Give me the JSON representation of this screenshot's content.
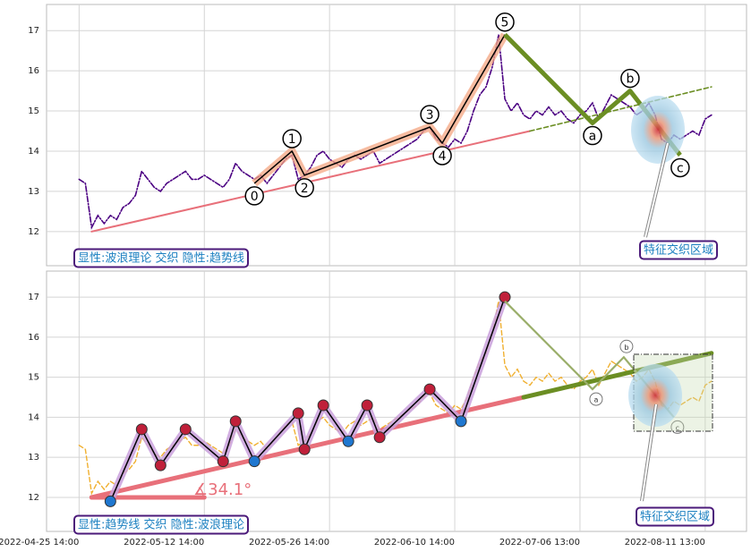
{
  "chart_data": [
    {
      "type": "line",
      "xlim": [
        -5.2,
        106.6
      ],
      "xticks": [
        0,
        20,
        40,
        60,
        80,
        100
      ],
      "ylim": [
        11.15,
        17.65
      ],
      "yticks": [
        12,
        13,
        14,
        15,
        16,
        17
      ],
      "grid": true,
      "series": [
        {
          "x": [
            0,
            1,
            2,
            3,
            4,
            5,
            6,
            7,
            8,
            9,
            10,
            11,
            12,
            13,
            14,
            15,
            16,
            17,
            18,
            19,
            20,
            21,
            22,
            23,
            24,
            25,
            26,
            27,
            28,
            29,
            30,
            31,
            32,
            33,
            34,
            35,
            36,
            37,
            38,
            39,
            40,
            41,
            42,
            43,
            44,
            45,
            46,
            47,
            48,
            49,
            50,
            51,
            52,
            53,
            54,
            55,
            56,
            57,
            58,
            59,
            60,
            61,
            62,
            63,
            64,
            65,
            66,
            67,
            68,
            69,
            70,
            71,
            72,
            73,
            74,
            75,
            76,
            77,
            78,
            79,
            80,
            81,
            82,
            83,
            84,
            85,
            86,
            87,
            88,
            89,
            90,
            91,
            92,
            93,
            94,
            95,
            96,
            97,
            98,
            99,
            100,
            101
          ],
          "values": [
            13.3,
            13.2,
            12.1,
            12.4,
            12.2,
            12.4,
            12.3,
            12.6,
            12.7,
            12.9,
            13.5,
            13.3,
            13.1,
            13.0,
            13.2,
            13.3,
            13.4,
            13.5,
            13.3,
            13.3,
            13.4,
            13.3,
            13.2,
            13.1,
            13.3,
            13.7,
            13.5,
            13.4,
            13.3,
            13.4,
            13.2,
            13.4,
            13.6,
            13.8,
            13.9,
            13.3,
            13.4,
            13.6,
            13.9,
            14.0,
            13.8,
            13.7,
            13.6,
            13.8,
            13.9,
            13.8,
            13.9,
            14.0,
            13.7,
            13.8,
            13.9,
            14.0,
            14.1,
            14.2,
            14.3,
            14.5,
            14.6,
            14.3,
            14.2,
            14.1,
            14.3,
            14.2,
            14.5,
            15.0,
            15.4,
            15.6,
            16.1,
            16.9,
            15.3,
            15.0,
            15.2,
            14.9,
            14.8,
            15.0,
            14.9,
            15.1,
            14.9,
            15.0,
            14.8,
            14.7,
            14.9,
            15.0,
            15.2,
            14.8,
            15.1,
            15.4,
            15.3,
            15.2,
            15.1,
            14.9,
            15.0,
            15.2,
            14.9,
            14.3,
            14.2,
            14.4,
            14.3,
            14.4,
            14.5,
            14.4,
            14.8,
            14.9
          ],
          "color": "#4b0082"
        },
        {
          "x": [
            2,
            72
          ],
          "values": [
            12.0,
            14.5
          ],
          "color": "#e8707a"
        },
        {
          "x": [
            72,
            101
          ],
          "values": [
            14.5,
            15.6
          ],
          "color": "#6b8e23"
        }
      ],
      "waves": {
        "labels": [
          "0",
          "1",
          "2",
          "3",
          "4",
          "5",
          "a",
          "b",
          "c"
        ],
        "x": [
          28,
          34,
          36,
          56,
          58,
          68,
          82,
          88,
          96
        ],
        "values": [
          13.2,
          14.0,
          13.4,
          14.6,
          14.2,
          16.9,
          14.7,
          15.5,
          13.9
        ],
        "impulse_color": "#000000",
        "highlight_color": "#f4a582",
        "correction_color": "#6b8e23"
      },
      "annotations": [
        "显性:波浪理论 交织 隐性:趋势线",
        "特征交织区域"
      ]
    },
    {
      "type": "line",
      "xlim": [
        -5.2,
        106.6
      ],
      "xticks": [
        {
          "value": 0,
          "label": "2022-04-25 14:00"
        },
        {
          "value": 20,
          "label": "2022-05-12 14:00"
        },
        {
          "value": 40,
          "label": "2022-05-26 14:00"
        },
        {
          "value": 60,
          "label": "2022-06-10 14:00"
        },
        {
          "value": 80,
          "label": "2022-07-06 13:00"
        },
        {
          "value": 100,
          "label": "2022-08-11 13:00"
        }
      ],
      "ylim": [
        11.15,
        17.65
      ],
      "yticks": [
        12,
        13,
        14,
        15,
        16,
        17
      ],
      "grid": true,
      "series": [
        {
          "x": [
            0,
            1,
            2,
            3,
            4,
            5,
            6,
            7,
            8,
            9,
            10,
            11,
            12,
            13,
            14,
            15,
            16,
            17,
            18,
            19,
            20,
            21,
            22,
            23,
            24,
            25,
            26,
            27,
            28,
            29,
            30,
            31,
            32,
            33,
            34,
            35,
            36,
            37,
            38,
            39,
            40,
            41,
            42,
            43,
            44,
            45,
            46,
            47,
            48,
            49,
            50,
            51,
            52,
            53,
            54,
            55,
            56,
            57,
            58,
            59,
            60,
            61,
            62,
            63,
            64,
            65,
            66,
            67,
            68,
            69,
            70,
            71,
            72,
            73,
            74,
            75,
            76,
            77,
            78,
            79,
            80,
            81,
            82,
            83,
            84,
            85,
            86,
            87,
            88,
            89,
            90,
            91,
            92,
            93,
            94,
            95,
            96,
            97,
            98,
            99,
            100,
            101
          ],
          "values": [
            13.3,
            13.2,
            12.1,
            12.4,
            12.2,
            12.4,
            12.3,
            12.6,
            12.7,
            12.9,
            13.5,
            13.3,
            13.1,
            13.0,
            13.2,
            13.3,
            13.4,
            13.5,
            13.3,
            13.3,
            13.4,
            13.3,
            13.2,
            13.1,
            13.3,
            13.7,
            13.5,
            13.4,
            13.3,
            13.4,
            13.2,
            13.4,
            13.6,
            13.8,
            13.9,
            13.3,
            13.4,
            13.6,
            13.9,
            14.0,
            13.8,
            13.7,
            13.6,
            13.8,
            13.9,
            13.8,
            13.9,
            14.0,
            13.7,
            13.8,
            13.9,
            14.0,
            14.1,
            14.2,
            14.3,
            14.5,
            14.6,
            14.3,
            14.2,
            14.1,
            14.3,
            14.2,
            14.5,
            15.0,
            15.4,
            15.6,
            16.1,
            16.9,
            15.3,
            15.0,
            15.2,
            14.9,
            14.8,
            15.0,
            14.9,
            15.1,
            14.9,
            15.0,
            14.8,
            14.7,
            14.9,
            15.0,
            15.2,
            14.8,
            15.1,
            15.4,
            15.3,
            15.2,
            15.1,
            14.9,
            15.0,
            15.2,
            14.9,
            14.3,
            14.2,
            14.4,
            14.3,
            14.4,
            14.5,
            14.4,
            14.8,
            14.9
          ],
          "color": "#f0b030"
        },
        {
          "x": [
            2,
            71
          ],
          "values": [
            12.0,
            14.5
          ],
          "color": "#e8707a"
        },
        {
          "x": [
            71,
            101
          ],
          "values": [
            14.5,
            15.6
          ],
          "color": "#6b8e23"
        },
        {
          "x": [
            2,
            20
          ],
          "values": [
            12.0,
            12.0
          ],
          "color": "#e8707a"
        }
      ],
      "zigzag": {
        "x": [
          5,
          10,
          13,
          17,
          23,
          25,
          28,
          35,
          36,
          39,
          43,
          46,
          48,
          56,
          61,
          68
        ],
        "values": [
          11.9,
          13.7,
          12.8,
          13.7,
          12.9,
          13.9,
          12.9,
          14.1,
          13.2,
          14.3,
          13.4,
          14.3,
          13.5,
          14.7,
          13.9,
          17.0
        ],
        "marker_colors": [
          "#1f77d0",
          "#c0203a",
          "#c0203a",
          "#c0203a",
          "#c0203a",
          "#c0203a",
          "#1f77d0",
          "#c0203a",
          "#c0203a",
          "#c0203a",
          "#1f77d0",
          "#c0203a",
          "#c0203a",
          "#c0203a",
          "#1f77d0",
          "#c0203a"
        ],
        "line_color": "#000000",
        "highlight_color": "#c9a0dc"
      },
      "waves": {
        "labels": [
          "a",
          "b",
          "c"
        ],
        "x": [
          82,
          87,
          95
        ],
        "values": [
          14.7,
          15.5,
          14.0
        ],
        "start": [
          68,
          16.9
        ],
        "color": "#9aae6a"
      },
      "annotations": [
        "∡34.1°",
        "显性:趋势线 交织 隐性:波浪理论",
        "特征交织区域"
      ]
    }
  ]
}
